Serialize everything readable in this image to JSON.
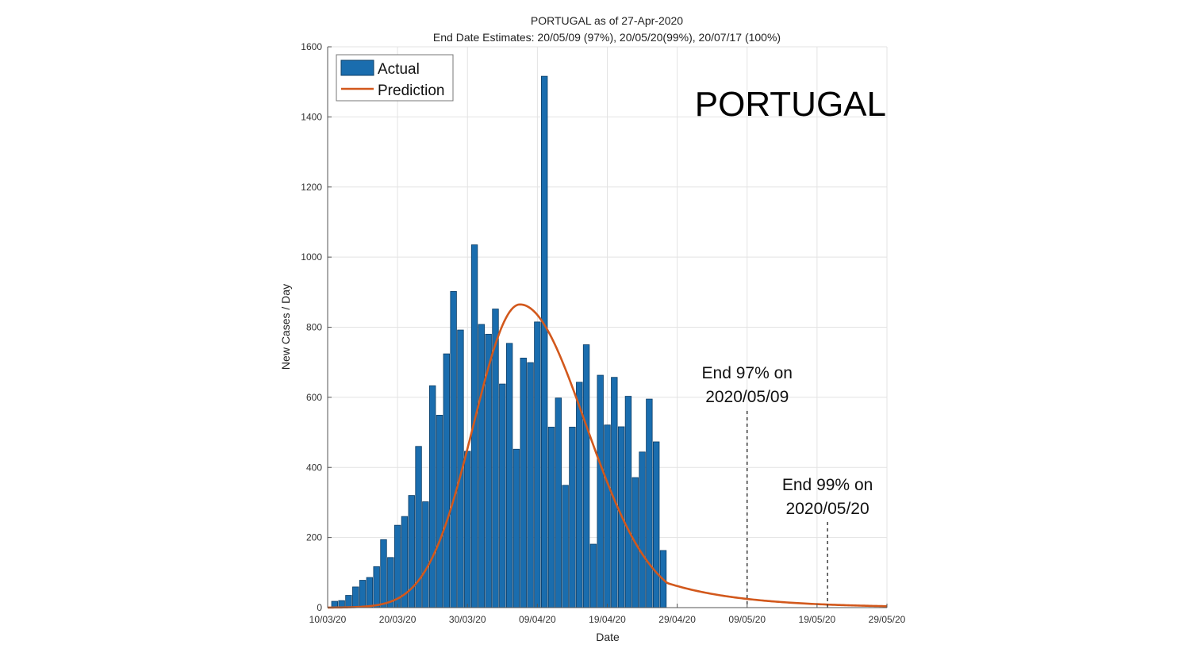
{
  "colors": {
    "bar_fill": "#1a6dae",
    "bar_stroke": "#0d3e66",
    "prediction": "#d2581c",
    "grid": "#e3e3e3",
    "axis": "#555555"
  },
  "chart_data": {
    "type": "bar",
    "title": "PORTUGAL as of 27-Apr-2020",
    "subtitle": "End Date Estimates: 20/05/09 (97%), 20/05/20(99%), 20/07/17 (100%)",
    "xlabel": "Date",
    "ylabel": "New Cases / Day",
    "country_label": "PORTUGAL",
    "xlim": [
      0,
      80
    ],
    "ylim": [
      0,
      1600
    ],
    "yticks": [
      0,
      200,
      400,
      600,
      800,
      1000,
      1200,
      1400,
      1600
    ],
    "xticks": [
      {
        "day": 0,
        "label": "10/03/20"
      },
      {
        "day": 10,
        "label": "20/03/20"
      },
      {
        "day": 20,
        "label": "30/03/20"
      },
      {
        "day": 30,
        "label": "09/04/20"
      },
      {
        "day": 40,
        "label": "19/04/20"
      },
      {
        "day": 50,
        "label": "29/04/20"
      },
      {
        "day": 60,
        "label": "09/05/20"
      },
      {
        "day": 70,
        "label": "19/05/20"
      },
      {
        "day": 80,
        "label": "29/05/20"
      }
    ],
    "legend": {
      "position": "top-left",
      "entries": [
        "Actual",
        "Prediction"
      ]
    },
    "grid": true,
    "series": [
      {
        "name": "Actual",
        "type": "bar",
        "start_day": 1,
        "values": [
          18,
          20,
          35,
          59,
          78,
          86,
          117,
          194,
          143,
          235,
          260,
          320,
          460,
          302,
          633,
          549,
          724,
          902,
          792,
          446,
          1035,
          808,
          780,
          852,
          638,
          754,
          452,
          712,
          699,
          815,
          1516,
          515,
          598,
          349,
          515,
          643,
          750,
          181,
          663,
          521,
          657,
          516,
          603,
          371,
          444,
          595,
          473,
          163
        ]
      },
      {
        "name": "Prediction",
        "type": "line",
        "peak_day": 27.5,
        "peak_value": 865,
        "sigma_left": 6.6,
        "sigma_right": 9.4,
        "tail_scale": 11
      }
    ],
    "annotations": [
      {
        "day": 60,
        "line1": "End 97% on",
        "line2": "2020/05/09"
      },
      {
        "day": 71.5,
        "line1": "End 99% on",
        "line2": "2020/05/20"
      }
    ]
  }
}
